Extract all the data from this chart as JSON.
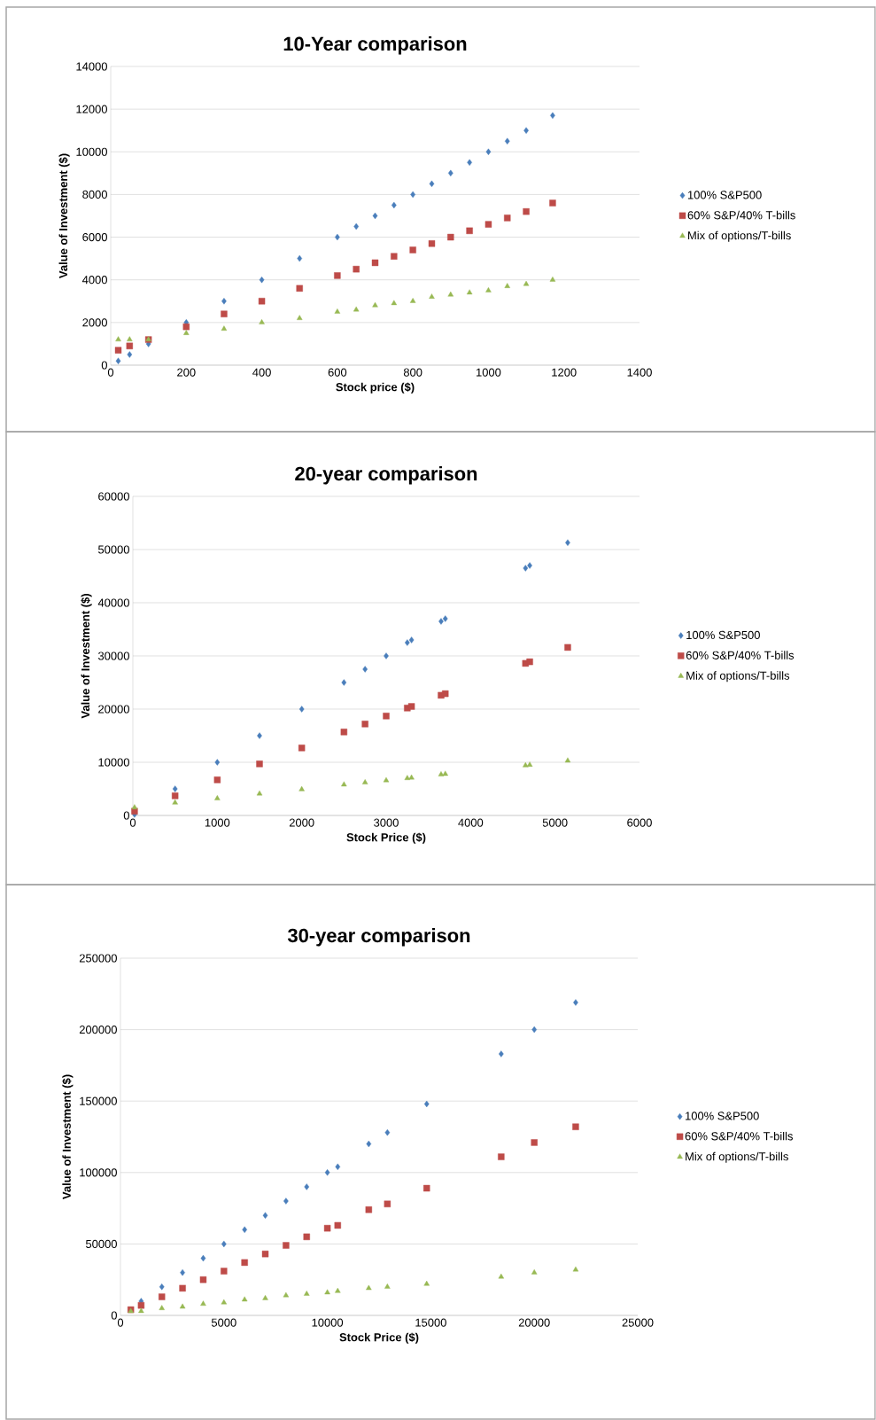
{
  "chart_data": [
    {
      "type": "scatter",
      "title": "10-Year comparison",
      "xlabel": "Stock price ($)",
      "ylabel": "Value of Investment ($)",
      "xlim": [
        0,
        1400
      ],
      "ylim": [
        0,
        14000
      ],
      "xticks": [
        0,
        200,
        400,
        600,
        800,
        1000,
        1200,
        1400
      ],
      "yticks": [
        0,
        2000,
        4000,
        6000,
        8000,
        10000,
        12000,
        14000
      ],
      "grid": "y",
      "legend": "right",
      "x": [
        20,
        50,
        100,
        200,
        300,
        400,
        500,
        600,
        650,
        700,
        750,
        800,
        850,
        900,
        950,
        1000,
        1050,
        1100,
        1170
      ],
      "series": [
        {
          "name": "100% S&P500",
          "color": "#4a7ebb",
          "marker": "diamond",
          "values": [
            200,
            500,
            1000,
            2000,
            3000,
            4000,
            5000,
            6000,
            6500,
            7000,
            7500,
            8000,
            8500,
            9000,
            9500,
            10000,
            10500,
            11000,
            11700
          ]
        },
        {
          "name": "60% S&P/40% T-bills",
          "color": "#be4b48",
          "marker": "square",
          "values": [
            700,
            900,
            1200,
            1800,
            2400,
            3000,
            3600,
            4200,
            4500,
            4800,
            5100,
            5400,
            5700,
            6000,
            6300,
            6600,
            6900,
            7200,
            7600
          ]
        },
        {
          "name": "Mix of options/T-bills",
          "color": "#98b954",
          "marker": "triangle",
          "values": [
            1200,
            1200,
            1200,
            1500,
            1700,
            2000,
            2200,
            2500,
            2600,
            2800,
            2900,
            3000,
            3200,
            3300,
            3400,
            3500,
            3700,
            3800,
            4000
          ]
        }
      ]
    },
    {
      "type": "scatter",
      "title": "20-year comparison",
      "xlabel": "Stock Price ($)",
      "ylabel": "Value of Investment ($)",
      "xlim": [
        0,
        6000
      ],
      "ylim": [
        0,
        60000
      ],
      "xticks": [
        0,
        1000,
        2000,
        3000,
        4000,
        5000,
        6000
      ],
      "yticks": [
        0,
        10000,
        20000,
        30000,
        40000,
        50000,
        60000
      ],
      "grid": "y",
      "legend": "right",
      "x": [
        20,
        500,
        1000,
        1500,
        2000,
        2500,
        2750,
        3000,
        3250,
        3300,
        3650,
        3700,
        4650,
        4700,
        5150
      ],
      "series": [
        {
          "name": "100% S&P500",
          "color": "#4a7ebb",
          "marker": "diamond",
          "values": [
            200,
            5000,
            10000,
            15000,
            20000,
            25000,
            27500,
            30000,
            32500,
            33000,
            36500,
            37000,
            46500,
            47000,
            51300
          ]
        },
        {
          "name": "60% S&P/40% T-bills",
          "color": "#be4b48",
          "marker": "square",
          "values": [
            800,
            3700,
            6700,
            9700,
            12700,
            15700,
            17200,
            18700,
            20200,
            20500,
            22600,
            22900,
            28600,
            28900,
            31600
          ]
        },
        {
          "name": "Mix of options/T-bills",
          "color": "#98b954",
          "marker": "triangle",
          "values": [
            1500,
            2400,
            3200,
            4100,
            4900,
            5800,
            6200,
            6600,
            7000,
            7100,
            7700,
            7800,
            9400,
            9500,
            10300
          ]
        }
      ]
    },
    {
      "type": "scatter",
      "title": "30-year comparison",
      "xlabel": "Stock Price ($)",
      "ylabel": "Value of Investment ($)",
      "xlim": [
        0,
        25000
      ],
      "ylim": [
        0,
        250000
      ],
      "xticks": [
        0,
        5000,
        10000,
        15000,
        20000,
        25000
      ],
      "yticks": [
        0,
        50000,
        100000,
        150000,
        200000,
        250000
      ],
      "grid": "y",
      "legend": "right",
      "x": [
        500,
        1000,
        2000,
        3000,
        4000,
        5000,
        6000,
        7000,
        8000,
        9000,
        10000,
        10500,
        12000,
        12900,
        14800,
        18400,
        20000,
        22000
      ],
      "series": [
        {
          "name": "100% S&P500",
          "color": "#4a7ebb",
          "marker": "diamond",
          "values": [
            null,
            10000,
            20000,
            30000,
            40000,
            50000,
            60000,
            70000,
            80000,
            90000,
            100000,
            104000,
            120000,
            128000,
            148000,
            183000,
            200000,
            219000
          ]
        },
        {
          "name": "60% S&P/40% T-bills",
          "color": "#be4b48",
          "marker": "square",
          "values": [
            4000,
            7000,
            13000,
            19000,
            25000,
            31000,
            37000,
            43000,
            49000,
            55000,
            61000,
            63000,
            74000,
            78000,
            89000,
            111000,
            121000,
            132000
          ]
        },
        {
          "name": "Mix of options/T-bills",
          "color": "#98b954",
          "marker": "triangle",
          "values": [
            3000,
            3000,
            5000,
            6000,
            8000,
            9000,
            11000,
            12000,
            14000,
            15000,
            16000,
            17000,
            19000,
            20000,
            22000,
            27000,
            30000,
            32000
          ]
        }
      ]
    }
  ]
}
